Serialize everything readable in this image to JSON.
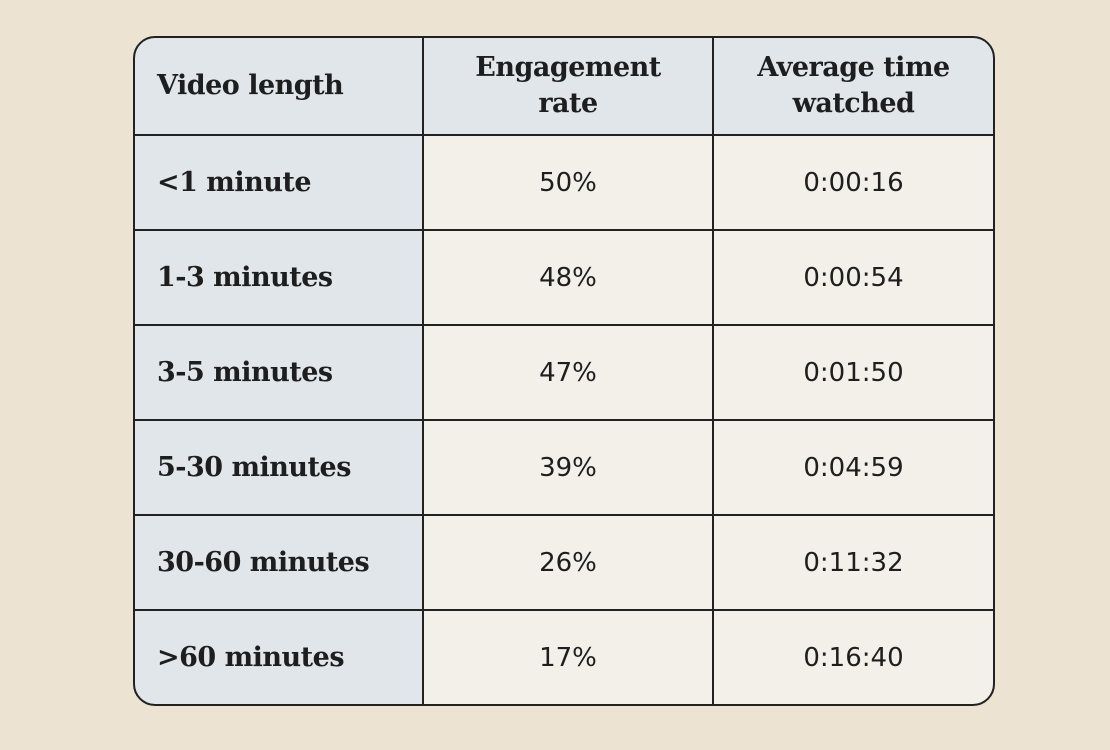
{
  "table": {
    "headers": [
      "Video length",
      "Engagement rate",
      "Average time watched"
    ],
    "rows": [
      [
        "<1 minute",
        "50%",
        "0:00:16"
      ],
      [
        "1-3 minutes",
        "48%",
        "0:00:54"
      ],
      [
        "3-5 minutes",
        "47%",
        "0:01:50"
      ],
      [
        "5-30 minutes",
        "39%",
        "0:04:59"
      ],
      [
        "30-60 minutes",
        "26%",
        "0:11:32"
      ],
      [
        ">60 minutes",
        "17%",
        "0:16:40"
      ]
    ]
  },
  "colors": {
    "background": "#ede3d3",
    "header_fill": "#e1e6ea",
    "cell_fill": "#f3efe9",
    "border": "#222222"
  }
}
